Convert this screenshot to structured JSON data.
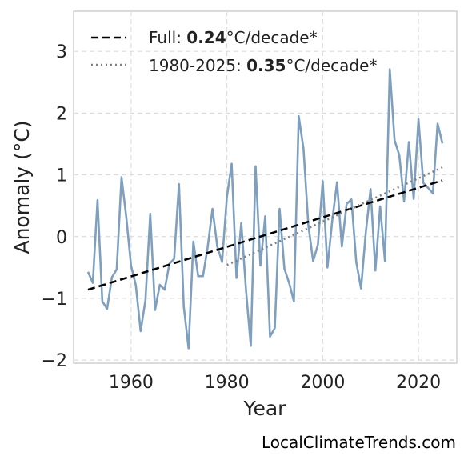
{
  "chart_data": {
    "type": "line",
    "xlabel": "Year",
    "ylabel": "Anomaly (°C)",
    "xlim": [
      1948,
      2028
    ],
    "ylim": [
      -2.05,
      3.65
    ],
    "x_ticks": [
      1960,
      1980,
      2000,
      2020
    ],
    "y_ticks": [
      -2,
      -1,
      0,
      1,
      2,
      3
    ],
    "y_tick_labels": [
      "−2",
      "−1",
      "0",
      "1",
      "2",
      "3"
    ],
    "grid": true,
    "legend_position": "top-left",
    "series": [
      {
        "role": "observed",
        "color": "#7f9fbf",
        "x": [
          1951,
          1952,
          1953,
          1954,
          1955,
          1956,
          1957,
          1958,
          1959,
          1960,
          1961,
          1962,
          1963,
          1964,
          1965,
          1966,
          1967,
          1968,
          1969,
          1970,
          1971,
          1972,
          1973,
          1974,
          1975,
          1976,
          1977,
          1978,
          1979,
          1980,
          1981,
          1982,
          1983,
          1984,
          1985,
          1986,
          1987,
          1988,
          1989,
          1990,
          1991,
          1992,
          1993,
          1994,
          1995,
          1996,
          1997,
          1998,
          1999,
          2000,
          2001,
          2002,
          2003,
          2004,
          2005,
          2006,
          2007,
          2008,
          2009,
          2010,
          2011,
          2012,
          2013,
          2014,
          2015,
          2016,
          2017,
          2018,
          2019,
          2020,
          2021,
          2022,
          2023,
          2024,
          2025
        ],
        "y": [
          -0.57,
          -0.75,
          0.59,
          -1.05,
          -1.17,
          -0.66,
          -0.53,
          0.96,
          0.31,
          -0.47,
          -0.79,
          -1.53,
          -1.03,
          0.37,
          -1.19,
          -0.78,
          -0.86,
          -0.44,
          -0.36,
          0.85,
          -1.13,
          -1.81,
          -0.08,
          -0.64,
          -0.64,
          -0.17,
          0.45,
          -0.16,
          -0.41,
          0.64,
          1.18,
          -0.67,
          0.22,
          -0.88,
          -1.77,
          1.14,
          -0.47,
          0.33,
          -1.62,
          -1.48,
          0.45,
          -0.52,
          -0.75,
          -1.05,
          1.95,
          1.42,
          0.19,
          -0.4,
          -0.13,
          0.9,
          -0.5,
          0.26,
          0.88,
          -0.16,
          0.53,
          0.6,
          -0.41,
          -0.84,
          0.06,
          0.77,
          -0.55,
          0.49,
          -0.4,
          2.71,
          1.56,
          1.32,
          0.57,
          1.53,
          0.61,
          1.9,
          0.87,
          0.79,
          0.7,
          1.83,
          1.51
        ]
      },
      {
        "role": "trend-full",
        "color": "#000000",
        "x": [
          1951,
          2025
        ],
        "y": [
          -0.86,
          0.91
        ]
      },
      {
        "role": "trend-1980-2025",
        "color": "#808080",
        "x": [
          1980,
          2025
        ],
        "y": [
          -0.46,
          1.12
        ]
      }
    ],
    "legend": [
      {
        "prefix": "Full: ",
        "bold": "0.24",
        "suffix": "°C/decade*",
        "style": "dashed",
        "color": "#000000"
      },
      {
        "prefix": "1980-2025: ",
        "bold": "0.35",
        "suffix": "°C/decade*",
        "style": "dotted",
        "color": "#808080"
      }
    ]
  },
  "credit": "LocalClimateTrends.com"
}
